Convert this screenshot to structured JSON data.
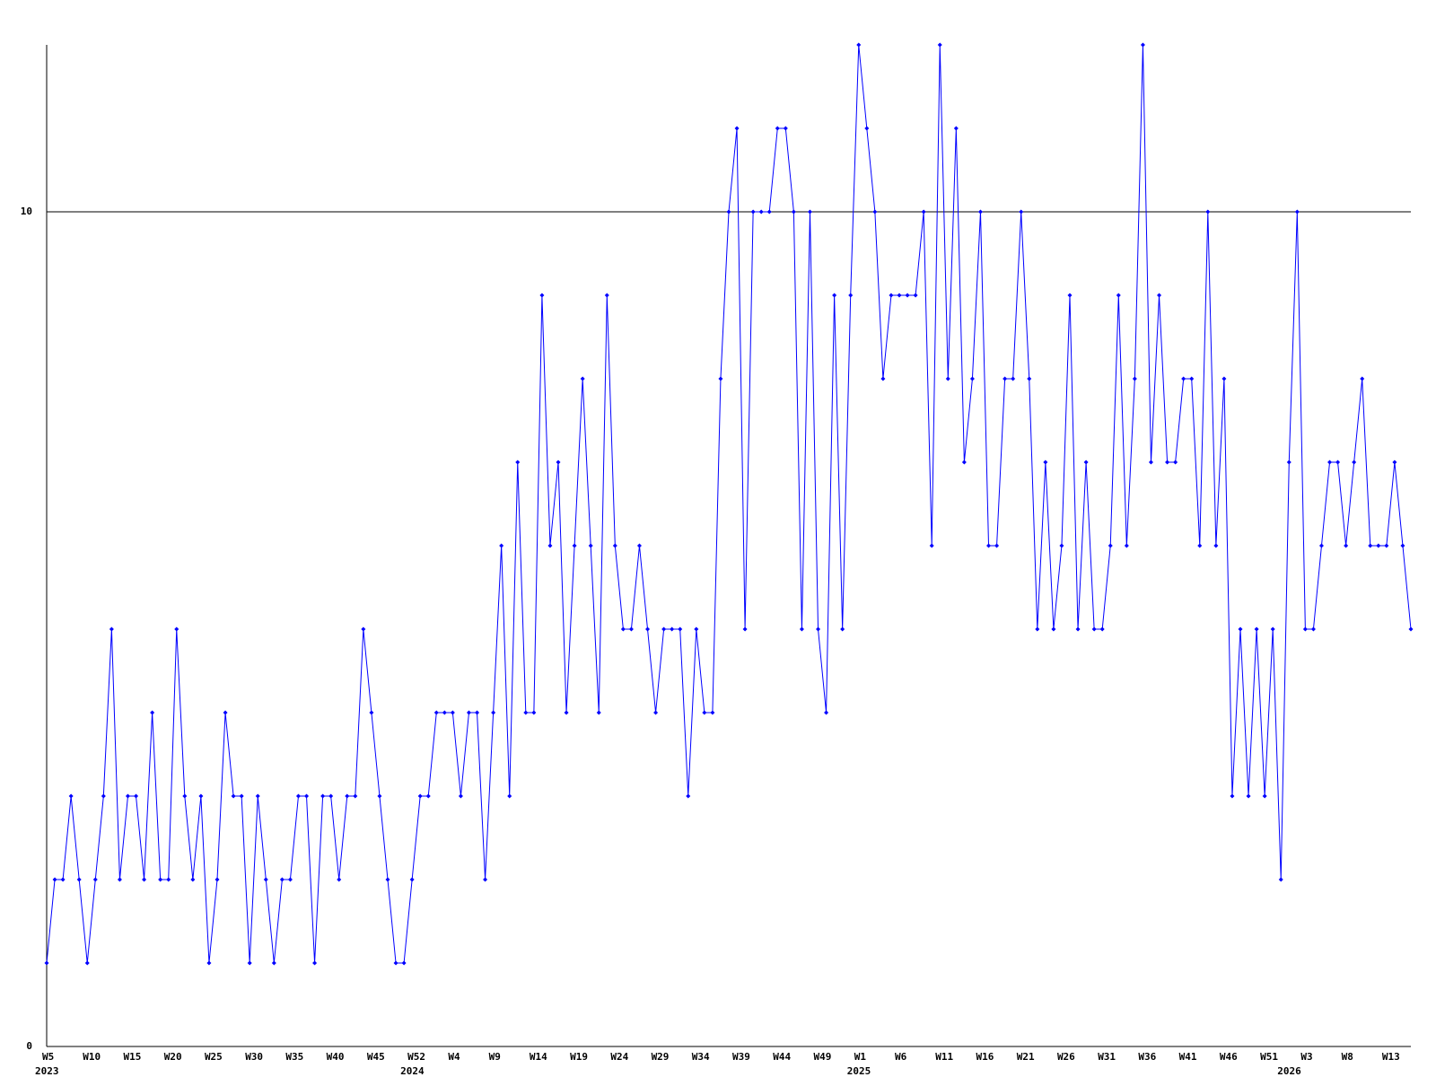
{
  "chart_data": {
    "type": "line",
    "categories": [
      "W5",
      null,
      null,
      null,
      null,
      "W10",
      null,
      null,
      null,
      null,
      "W15",
      null,
      null,
      null,
      null,
      "W20",
      null,
      null,
      null,
      null,
      "W25",
      null,
      null,
      null,
      null,
      "W30",
      null,
      null,
      null,
      null,
      "W35",
      null,
      null,
      null,
      null,
      "W40",
      null,
      null,
      null,
      null,
      "W45",
      null,
      null,
      null,
      null,
      "W52",
      null,
      null,
      null,
      null,
      "W4",
      null,
      null,
      null,
      null,
      "W9",
      null,
      null,
      null,
      null,
      "W14",
      null,
      null,
      null,
      null,
      "W19",
      null,
      null,
      null,
      null,
      "W24",
      null,
      null,
      null,
      null,
      "W29",
      null,
      null,
      null,
      null,
      "W34",
      null,
      null,
      null,
      null,
      "W39",
      null,
      null,
      null,
      null,
      "W44",
      null,
      null,
      null,
      null,
      "W49",
      null,
      null,
      null,
      null,
      "W1",
      null,
      null,
      null,
      null,
      "W6",
      null,
      null,
      null,
      null,
      "W11",
      null,
      null,
      null,
      null,
      "W16",
      null,
      null,
      null,
      null,
      "W21",
      null,
      null,
      null,
      null,
      "W26",
      null,
      null,
      null,
      null,
      "W31",
      null,
      null,
      null,
      null,
      "W36",
      null,
      null,
      null,
      null,
      "W41",
      null,
      null,
      null,
      null,
      "W46",
      null,
      null,
      null,
      null,
      "W51",
      null,
      null,
      null,
      null,
      "W3",
      null,
      null,
      null,
      null,
      "W8",
      null,
      null,
      null,
      null,
      "W13",
      null,
      null,
      null
    ],
    "years": [
      "2023",
      null,
      null,
      null,
      null,
      null,
      null,
      null,
      null,
      null,
      null,
      null,
      null,
      null,
      null,
      null,
      null,
      null,
      null,
      null,
      null,
      null,
      null,
      null,
      null,
      null,
      null,
      null,
      null,
      null,
      null,
      null,
      null,
      null,
      null,
      null,
      null,
      null,
      null,
      null,
      null,
      null,
      null,
      null,
      null,
      "2024",
      null,
      null,
      null,
      null,
      null,
      null,
      null,
      null,
      null,
      null,
      null,
      null,
      null,
      null,
      null,
      null,
      null,
      null,
      null,
      null,
      null,
      null,
      null,
      null,
      null,
      null,
      null,
      null,
      null,
      null,
      null,
      null,
      null,
      null,
      null,
      null,
      null,
      null,
      null,
      null,
      null,
      null,
      null,
      null,
      null,
      null,
      null,
      null,
      null,
      null,
      null,
      null,
      null,
      null,
      "2025",
      null,
      null,
      null,
      null,
      null,
      null,
      null,
      null,
      null,
      null,
      null,
      null,
      null,
      null,
      null,
      null,
      null,
      null,
      null,
      null,
      null,
      null,
      null,
      null,
      null,
      null,
      null,
      null,
      null,
      null,
      null,
      null,
      null,
      null,
      null,
      null,
      null,
      null,
      null,
      null,
      null,
      null,
      null,
      null,
      null,
      null,
      null,
      null,
      null,
      null,
      null,
      null,
      "2026",
      null,
      null,
      null,
      null,
      null,
      null,
      null,
      null,
      null,
      null,
      null,
      null,
      null,
      null,
      null
    ],
    "values": [
      1,
      2,
      2,
      3,
      2,
      1,
      2,
      3,
      5,
      2,
      3,
      3,
      2,
      4,
      2,
      2,
      5,
      3,
      2,
      3,
      1,
      2,
      4,
      3,
      3,
      1,
      3,
      2,
      1,
      2,
      2,
      3,
      3,
      1,
      3,
      3,
      2,
      3,
      3,
      5,
      4,
      3,
      2,
      1,
      1,
      2,
      3,
      3,
      4,
      4,
      4,
      3,
      4,
      4,
      2,
      4,
      6,
      3,
      7,
      4,
      4,
      9,
      6,
      7,
      4,
      6,
      8,
      6,
      4,
      9,
      6,
      5,
      5,
      6,
      5,
      4,
      5,
      5,
      5,
      3,
      5,
      4,
      4,
      8,
      10,
      11,
      5,
      10,
      10,
      10,
      11,
      11,
      10,
      5,
      10,
      5,
      4,
      9,
      5,
      9,
      12,
      11,
      10,
      8,
      9,
      9,
      9,
      9,
      10,
      6,
      12,
      8,
      11,
      7,
      8,
      10,
      6,
      6,
      8,
      8,
      10,
      8,
      5,
      7,
      5,
      6,
      9,
      5,
      7,
      5,
      5,
      6,
      9,
      6,
      8,
      12,
      7,
      9,
      7,
      7,
      8,
      8,
      6,
      10,
      6,
      8,
      3,
      5,
      3,
      5,
      3,
      5,
      2,
      7,
      10,
      5,
      5,
      6,
      7,
      7,
      6,
      7,
      8,
      6,
      6,
      6,
      7,
      6,
      5
    ],
    "color": "#0000ff",
    "ylim": [
      0,
      12
    ],
    "yticks": [
      0,
      10
    ],
    "grid": true
  }
}
